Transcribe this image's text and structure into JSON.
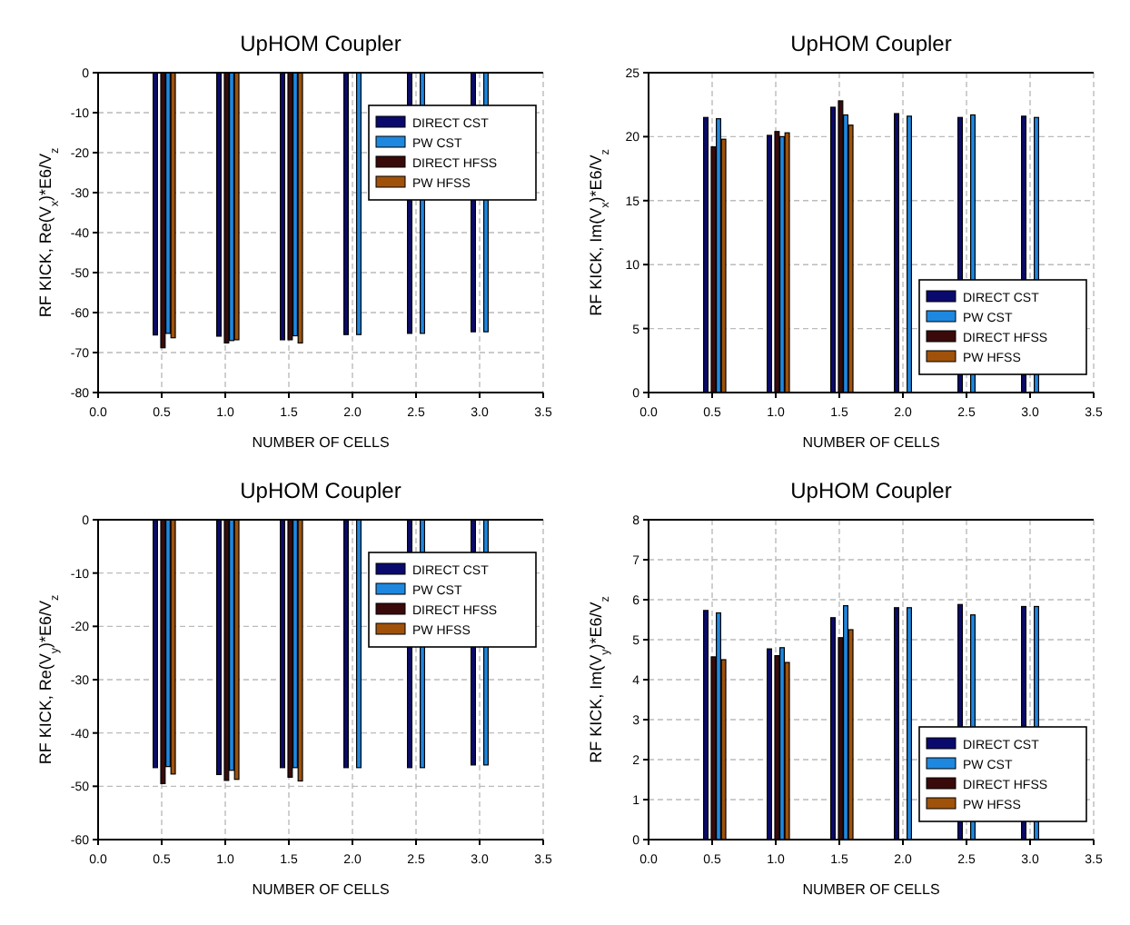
{
  "chart_data": [
    {
      "type": "bar",
      "title": "UpHOM  Coupler",
      "xlabel": "NUMBER OF CELLS",
      "ylabel": "RF KICK, Re(V$_{x}$)*E6/V$_{z}$",
      "xlim": [
        0,
        3.5
      ],
      "xticks": [
        {
          "value": 0,
          "label": "0.0"
        },
        {
          "value": 0.5,
          "label": "0.5"
        },
        {
          "value": 1,
          "label": "1.0"
        },
        {
          "value": 1.5,
          "label": "1.5"
        },
        {
          "value": 2,
          "label": "2.0"
        },
        {
          "value": 2.5,
          "label": "2.5"
        },
        {
          "value": 3,
          "label": "3.0"
        },
        {
          "value": 3.5,
          "label": "3.5"
        }
      ],
      "ylim": [
        -80,
        0
      ],
      "yticks": [
        -80,
        -70,
        -60,
        -50,
        -40,
        -30,
        -20,
        -10,
        0
      ],
      "grid": true,
      "legend": "top right",
      "series": [
        {
          "name": "DIRECT CST",
          "color": "#0a0a6e",
          "x": [
            0.45,
            0.95,
            1.45,
            1.95,
            2.45,
            2.95
          ],
          "values": [
            -65.6,
            -65.9,
            -66.8,
            -65.5,
            -65.2,
            -64.8
          ]
        },
        {
          "name": "PW  CST",
          "color": "#1e88e0",
          "x": [
            0.55,
            1.05,
            1.55,
            2.05,
            2.55,
            3.05
          ],
          "values": [
            -65.2,
            -67,
            -65.8,
            -65.5,
            -65.2,
            -64.8
          ]
        },
        {
          "name": "DIRECT HFSS",
          "color": "#3a0a0a",
          "x": [
            0.51,
            1.01,
            1.51
          ],
          "values": [
            -68.8,
            -67.6,
            -66.8
          ]
        },
        {
          "name": "PW HFSS",
          "color": "#a0520a",
          "x": [
            0.59,
            1.09,
            1.59
          ],
          "values": [
            -66.3,
            -66.8,
            -67.6
          ]
        }
      ]
    },
    {
      "type": "bar",
      "title": "UpHOM  Coupler",
      "xlabel": "NUMBER OF CELLS",
      "ylabel": "RF KICK, Im(V$_{x}$)*E6/V$_{z}$",
      "xlim": [
        0,
        3.5
      ],
      "xticks": [
        {
          "value": 0,
          "label": "0.0"
        },
        {
          "value": 0.5,
          "label": "0.5"
        },
        {
          "value": 1,
          "label": "1.0"
        },
        {
          "value": 1.5,
          "label": "1.5"
        },
        {
          "value": 2,
          "label": "2.0"
        },
        {
          "value": 2.5,
          "label": "2.5"
        },
        {
          "value": 3,
          "label": "3.0"
        },
        {
          "value": 3.5,
          "label": "3.5"
        }
      ],
      "ylim": [
        0,
        25
      ],
      "yticks": [
        0,
        5,
        10,
        15,
        20,
        25
      ],
      "grid": true,
      "legend": "bottom right",
      "series": [
        {
          "name": "DIRECT CST",
          "color": "#0a0a6e",
          "x": [
            0.45,
            0.95,
            1.45,
            1.95,
            2.45,
            2.95
          ],
          "values": [
            21.5,
            20.1,
            22.3,
            21.8,
            21.5,
            21.6
          ]
        },
        {
          "name": "PW  CST",
          "color": "#1e88e0",
          "x": [
            0.55,
            1.05,
            1.55,
            2.05,
            2.55,
            3.05
          ],
          "values": [
            21.4,
            20,
            21.7,
            21.6,
            21.7,
            21.5
          ]
        },
        {
          "name": "DIRECT HFSS",
          "color": "#3a0a0a",
          "x": [
            0.51,
            1.01,
            1.51
          ],
          "values": [
            19.2,
            20.4,
            22.8
          ]
        },
        {
          "name": "PW HFSS",
          "color": "#a0520a",
          "x": [
            0.59,
            1.09,
            1.59
          ],
          "values": [
            19.8,
            20.3,
            20.9
          ]
        }
      ]
    },
    {
      "type": "bar",
      "title": "UpHOM  Coupler",
      "xlabel": "NUMBER OF CELLS",
      "ylabel": "RF KICK, Re(V$_{y}$)*E6/V$_{z}$",
      "xlim": [
        0,
        3.5
      ],
      "xticks": [
        {
          "value": 0,
          "label": "0.0"
        },
        {
          "value": 0.5,
          "label": "0.5"
        },
        {
          "value": 1,
          "label": "1.0"
        },
        {
          "value": 1.5,
          "label": "1.5"
        },
        {
          "value": 2,
          "label": "2.0"
        },
        {
          "value": 2.5,
          "label": "2.5"
        },
        {
          "value": 3,
          "label": "3.0"
        },
        {
          "value": 3.5,
          "label": "3.5"
        }
      ],
      "ylim": [
        -60,
        0
      ],
      "yticks": [
        -60,
        -50,
        -40,
        -30,
        -20,
        -10,
        0
      ],
      "grid": true,
      "legend": "top right",
      "series": [
        {
          "name": "DIRECT CST",
          "color": "#0a0a6e",
          "x": [
            0.45,
            0.95,
            1.45,
            1.95,
            2.45,
            2.95
          ],
          "values": [
            -46.5,
            -47.8,
            -46.5,
            -46.5,
            -46.5,
            -46
          ]
        },
        {
          "name": "PW  CST",
          "color": "#1e88e0",
          "x": [
            0.55,
            1.05,
            1.55,
            2.05,
            2.55,
            3.05
          ],
          "values": [
            -46.3,
            -47,
            -46.5,
            -46.5,
            -46.5,
            -46
          ]
        },
        {
          "name": "DIRECT HFSS",
          "color": "#3a0a0a",
          "x": [
            0.51,
            1.01,
            1.51
          ],
          "values": [
            -49.5,
            -48.9,
            -48.3
          ]
        },
        {
          "name": "PW HFSS",
          "color": "#a0520a",
          "x": [
            0.59,
            1.09,
            1.59
          ],
          "values": [
            -47.7,
            -48.7,
            -49
          ]
        }
      ]
    },
    {
      "type": "bar",
      "title": "UpHOM  Coupler",
      "xlabel": "NUMBER OF CELLS",
      "ylabel": "RF KICK, Im(V$_{y}$)*E6/V$_{z}$",
      "xlim": [
        0,
        3.5
      ],
      "xticks": [
        {
          "value": 0,
          "label": "0.0"
        },
        {
          "value": 0.5,
          "label": "0.5"
        },
        {
          "value": 1,
          "label": "1.0"
        },
        {
          "value": 1.5,
          "label": "1.5"
        },
        {
          "value": 2,
          "label": "2.0"
        },
        {
          "value": 2.5,
          "label": "2.5"
        },
        {
          "value": 3,
          "label": "3.0"
        },
        {
          "value": 3.5,
          "label": "3.5"
        }
      ],
      "ylim": [
        0,
        8
      ],
      "yticks": [
        0,
        1,
        2,
        3,
        4,
        5,
        6,
        7,
        8
      ],
      "grid": true,
      "legend": "bottom right",
      "series": [
        {
          "name": "DIRECT CST",
          "color": "#0a0a6e",
          "x": [
            0.45,
            0.95,
            1.45,
            1.95,
            2.45,
            2.95
          ],
          "values": [
            5.73,
            4.77,
            5.55,
            5.8,
            5.88,
            5.83
          ]
        },
        {
          "name": "PW  CST",
          "color": "#1e88e0",
          "x": [
            0.55,
            1.05,
            1.55,
            2.05,
            2.55,
            3.05
          ],
          "values": [
            5.67,
            4.8,
            5.85,
            5.8,
            5.62,
            5.83
          ]
        },
        {
          "name": "DIRECT HFSS",
          "color": "#3a0a0a",
          "x": [
            0.51,
            1.01,
            1.51
          ],
          "values": [
            4.57,
            4.6,
            5.05
          ]
        },
        {
          "name": "PW HFSS",
          "color": "#a0520a",
          "x": [
            0.59,
            1.09,
            1.59
          ],
          "values": [
            4.5,
            4.43,
            5.25
          ]
        }
      ]
    }
  ]
}
